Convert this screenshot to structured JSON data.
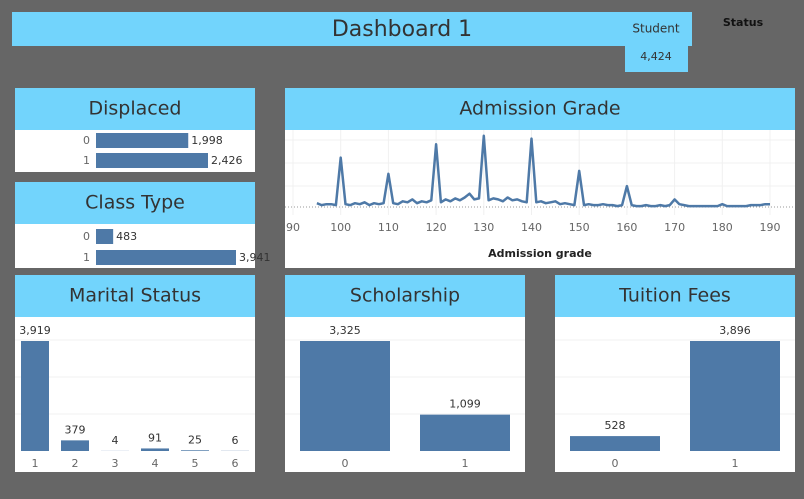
{
  "header": {
    "title": "Dashboard 1",
    "student_label": "Student",
    "student_count": "4,424",
    "status_label": "Status"
  },
  "chart_data": [
    {
      "type": "bar",
      "horizontal": true,
      "title": "Displaced",
      "categories": [
        "0",
        "1"
      ],
      "values": [
        1998,
        2426
      ],
      "value_labels": [
        "1,998",
        "2,426"
      ],
      "color": "#4e79a7"
    },
    {
      "type": "bar",
      "horizontal": true,
      "title": "Class Type",
      "categories": [
        "0",
        "1"
      ],
      "values": [
        483,
        3941
      ],
      "value_labels": [
        "483",
        "3,941"
      ],
      "color": "#4e79a7"
    },
    {
      "type": "line",
      "title": "Admission Grade",
      "x_label": "Admission grade",
      "color": "#4e79a7",
      "xlim": [
        90,
        190
      ],
      "xticks": [
        90,
        100,
        110,
        120,
        130,
        140,
        150,
        160,
        170,
        180,
        190
      ],
      "ylim": [
        0,
        80
      ],
      "x": [
        95,
        96,
        97,
        98,
        99,
        100,
        101,
        102,
        103,
        104,
        105,
        106,
        107,
        108,
        109,
        110,
        111,
        112,
        113,
        114,
        115,
        116,
        117,
        118,
        119,
        120,
        121,
        122,
        123,
        124,
        125,
        126,
        127,
        128,
        129,
        130,
        131,
        132,
        133,
        134,
        135,
        136,
        137,
        138,
        139,
        140,
        141,
        142,
        143,
        144,
        145,
        146,
        147,
        148,
        149,
        150,
        151,
        152,
        153,
        154,
        155,
        156,
        157,
        158,
        159,
        160,
        161,
        162,
        163,
        164,
        165,
        166,
        167,
        168,
        169,
        170,
        171,
        172,
        173,
        174,
        175,
        176,
        177,
        178,
        179,
        180,
        181,
        182,
        183,
        184,
        185,
        186,
        187,
        188,
        189,
        190
      ],
      "series": [
        {
          "name": "Admission grade",
          "values": [
            4,
            2,
            3,
            3,
            2,
            52,
            3,
            2,
            4,
            3,
            5,
            2,
            4,
            3,
            4,
            35,
            4,
            3,
            6,
            5,
            8,
            4,
            6,
            5,
            7,
            66,
            5,
            8,
            6,
            9,
            7,
            10,
            14,
            8,
            9,
            75,
            7,
            9,
            8,
            6,
            10,
            7,
            8,
            6,
            5,
            72,
            5,
            6,
            4,
            5,
            6,
            3,
            4,
            3,
            2,
            38,
            2,
            3,
            2,
            2,
            3,
            2,
            2,
            1,
            2,
            22,
            2,
            1,
            1,
            2,
            1,
            1,
            2,
            1,
            2,
            8,
            3,
            2,
            1,
            1,
            1,
            1,
            1,
            1,
            1,
            3,
            1,
            1,
            1,
            1,
            1,
            2,
            2,
            2,
            3,
            3
          ]
        }
      ]
    },
    {
      "type": "bar",
      "title": "Marital Status",
      "categories": [
        "1",
        "2",
        "3",
        "4",
        "5",
        "6"
      ],
      "values": [
        3919,
        379,
        4,
        91,
        25,
        6
      ],
      "value_labels": [
        "3,919",
        "379",
        "4",
        "91",
        "25",
        "6"
      ],
      "color": "#4e79a7"
    },
    {
      "type": "bar",
      "title": "Scholarship",
      "categories": [
        "0",
        "1"
      ],
      "values": [
        3325,
        1099
      ],
      "value_labels": [
        "3,325",
        "1,099"
      ],
      "color": "#4e79a7"
    },
    {
      "type": "bar",
      "title": "Tuition Fees",
      "categories": [
        "0",
        "1"
      ],
      "values": [
        528,
        3896
      ],
      "value_labels": [
        "528",
        "3,896"
      ],
      "color": "#4e79a7"
    }
  ]
}
